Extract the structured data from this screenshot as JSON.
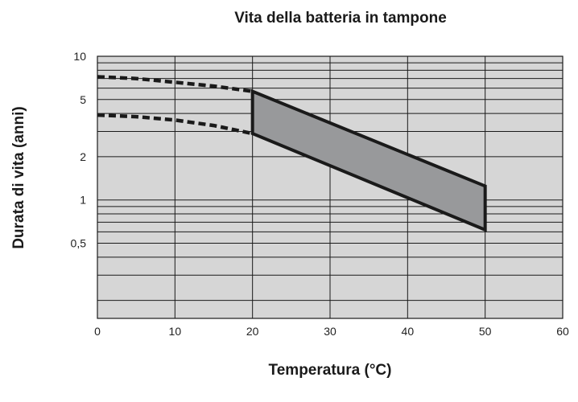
{
  "chart_data": {
    "type": "area",
    "title": "Vita della batteria in tampone",
    "xlabel": "Temperatura (°C)",
    "ylabel": "Durata di vita (anni)",
    "x_scale": "linear",
    "y_scale": "log",
    "xlim": [
      0,
      60
    ],
    "ylim": [
      0.15,
      10
    ],
    "x_ticks": [
      0,
      10,
      20,
      30,
      40,
      50,
      60
    ],
    "x_tick_labels": [
      "0",
      "10",
      "20",
      "30",
      "40",
      "50",
      "60"
    ],
    "y_ticks": [
      0.5,
      1,
      2,
      5,
      10
    ],
    "y_tick_labels": [
      "0,5",
      "1",
      "2",
      "5",
      "10"
    ],
    "grid": true,
    "series": [
      {
        "role": "upper",
        "x": [
          20,
          50
        ],
        "y": [
          5.7,
          1.25
        ],
        "extrapolated": {
          "x": [
            0,
            5,
            10,
            15,
            20
          ],
          "y": [
            7.2,
            7.0,
            6.6,
            6.2,
            5.7
          ]
        }
      },
      {
        "role": "lower",
        "x": [
          20,
          50
        ],
        "y": [
          2.9,
          0.62
        ],
        "extrapolated": {
          "x": [
            0,
            5,
            10,
            15,
            20
          ],
          "y": [
            3.9,
            3.8,
            3.6,
            3.3,
            2.9
          ]
        }
      }
    ],
    "colors": {
      "plot_background": "#d6d6d6",
      "band_fill": "#98999b",
      "line": "#1a1a1a",
      "grid": "#1a1a1a"
    }
  }
}
